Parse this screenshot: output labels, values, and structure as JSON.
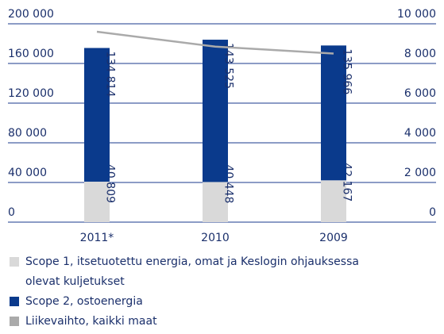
{
  "chart_data": {
    "type": "bar",
    "categories": [
      "2011*",
      "2010",
      "2009"
    ],
    "series": [
      {
        "name": "Scope 1, itsetuotettu energia, omat ja Keslogin ohjauksessa olevat kuljetukset",
        "color": "#d9d9d9",
        "values": [
          40809,
          40448,
          42167
        ],
        "value_labels": [
          "40 809",
          "40 448",
          "42 167"
        ]
      },
      {
        "name": "Scope 2, ostoenergia",
        "color": "#0a3a8c",
        "values": [
          134814,
          143525,
          135966
        ],
        "value_labels": [
          "134 814",
          "143 525",
          "135 966"
        ]
      },
      {
        "name": "Liikevaihto, kaikki maat",
        "color": "#aaaaaa",
        "type": "line",
        "axis": "y2",
        "values": [
          9600,
          8850,
          8500
        ]
      }
    ],
    "stacked": true,
    "ylim": [
      0,
      200000
    ],
    "yticks": [
      0,
      {
        "value": 40000,
        "label": "40 000"
      },
      {
        "value": 80000,
        "label": "80 000"
      },
      {
        "value": 120000,
        "label": "120 000"
      },
      {
        "value": 160000,
        "label": "160 000"
      },
      {
        "value": 200000,
        "label": "200 000"
      }
    ],
    "y2lim": [
      0,
      10000
    ],
    "y2ticks": [
      0,
      {
        "value": 2000,
        "label": "2 000"
      },
      {
        "value": 4000,
        "label": "4 000"
      },
      {
        "value": 6000,
        "label": "6 000"
      },
      {
        "value": 8000,
        "label": "8 000"
      },
      {
        "value": 10000,
        "label": "10 000"
      }
    ],
    "grid": true
  }
}
